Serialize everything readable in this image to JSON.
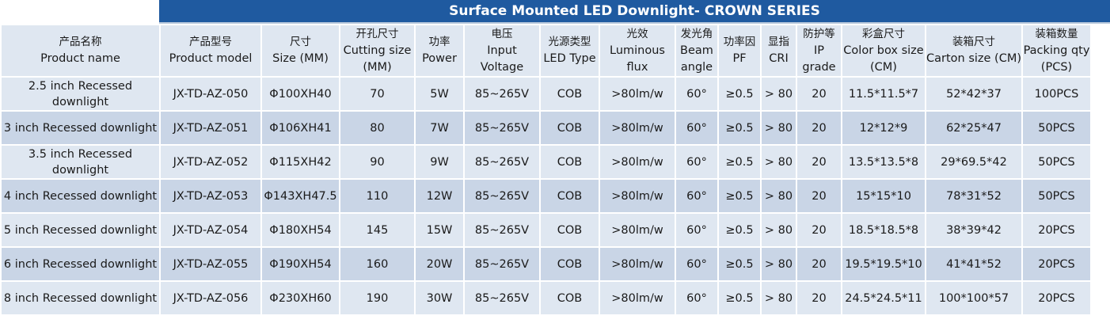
{
  "title": "Surface Mounted LED Downlight- CROWN SERIES",
  "headers": [
    {
      "zh": "产品名称",
      "en": "Product name"
    },
    {
      "zh": "产品型号",
      "en": "Product model"
    },
    {
      "zh": "尺寸",
      "en": "Size (MM)"
    },
    {
      "zh": "开孔尺寸",
      "en": "Cutting size (MM)"
    },
    {
      "zh": "功率",
      "en": "Power"
    },
    {
      "zh": "电压",
      "en": "Input Voltage"
    },
    {
      "zh": "光源类型",
      "en": "LED Type"
    },
    {
      "zh": "光效",
      "en": "Luminous flux"
    },
    {
      "zh": "发光角",
      "en": "Beam angle"
    },
    {
      "zh": "功率因",
      "en": "PF"
    },
    {
      "zh": "显指",
      "en": "CRI"
    },
    {
      "zh": "防护等",
      "en": "IP grade"
    },
    {
      "zh": "彩盒尺寸",
      "en": "Color box size (CM)"
    },
    {
      "zh": "装箱尺寸",
      "en": "Carton size (CM)"
    },
    {
      "zh": "装箱数量",
      "en": "Packing qty (PCS)"
    }
  ],
  "rows": [
    [
      "2.5 inch Recessed downlight",
      "JX-TD-AZ-050",
      "Φ100XH40",
      "70",
      "5W",
      "85~265V",
      "COB",
      ">80lm/w",
      "60°",
      "≥0.5",
      "> 80",
      "20",
      "11.5*11.5*7",
      "52*42*37",
      "100PCS"
    ],
    [
      "3 inch Recessed downlight",
      "JX-TD-AZ-051",
      "Φ106XH41",
      "80",
      "7W",
      "85~265V",
      "COB",
      ">80lm/w",
      "60°",
      "≥0.5",
      "> 80",
      "20",
      "12*12*9",
      "62*25*47",
      "50PCS"
    ],
    [
      "3.5 inch Recessed downlight",
      "JX-TD-AZ-052",
      "Φ115XH42",
      "90",
      "9W",
      "85~265V",
      "COB",
      ">80lm/w",
      "60°",
      "≥0.5",
      "> 80",
      "20",
      "13.5*13.5*8",
      "29*69.5*42",
      "50PCS"
    ],
    [
      "4 inch Recessed downlight",
      "JX-TD-AZ-053",
      "Φ143XH47.5",
      "110",
      "12W",
      "85~265V",
      "COB",
      ">80lm/w",
      "60°",
      "≥0.5",
      "> 80",
      "20",
      "15*15*10",
      "78*31*52",
      "50PCS"
    ],
    [
      "5 inch Recessed downlight",
      "JX-TD-AZ-054",
      "Φ180XH54",
      "145",
      "15W",
      "85~265V",
      "COB",
      ">80lm/w",
      "60°",
      "≥0.5",
      "> 80",
      "20",
      "18.5*18.5*8",
      "38*39*42",
      "20PCS"
    ],
    [
      "6 inch Recessed downlight",
      "JX-TD-AZ-055",
      "Φ190XH54",
      "160",
      "20W",
      "85~265V",
      "COB",
      ">80lm/w",
      "60°",
      "≥0.5",
      "> 80",
      "20",
      "19.5*19.5*10",
      "41*41*52",
      "20PCS"
    ],
    [
      "8 inch Recessed downlight",
      "JX-TD-AZ-056",
      "Φ230XH60",
      "190",
      "30W",
      "85~265V",
      "COB",
      ">80lm/w",
      "60°",
      "≥0.5",
      "> 80",
      "20",
      "24.5*24.5*11",
      "100*100*57",
      "20PCS"
    ]
  ]
}
